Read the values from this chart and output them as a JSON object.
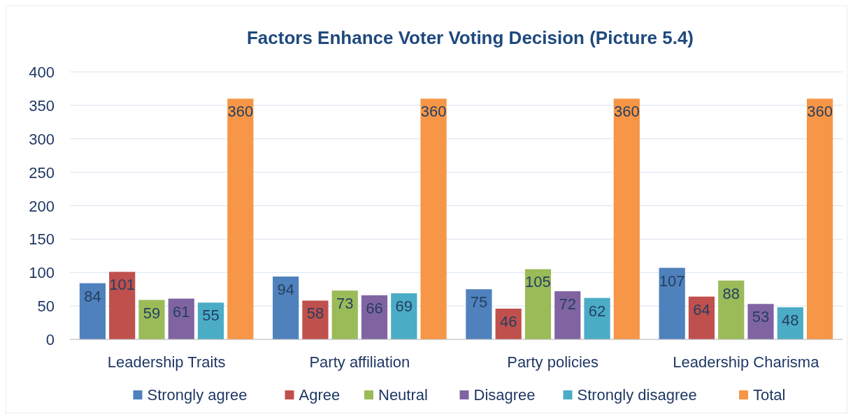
{
  "chart_data": {
    "type": "bar",
    "title": "Factors Enhance Voter Voting Decision (Picture 5.4)",
    "categories": [
      "Leadership Traits",
      "Party affiliation",
      "Party policies",
      "Leadership Charisma"
    ],
    "series": [
      {
        "name": "Strongly agree",
        "color": "#4f81bd",
        "values": [
          84,
          94,
          75,
          107
        ]
      },
      {
        "name": "Agree",
        "color": "#c0504d",
        "values": [
          101,
          58,
          46,
          64
        ]
      },
      {
        "name": "Neutral",
        "color": "#9bbb59",
        "values": [
          59,
          73,
          105,
          88
        ]
      },
      {
        "name": "Disagree",
        "color": "#8064a2",
        "values": [
          61,
          66,
          72,
          53
        ]
      },
      {
        "name": "Strongly disagree",
        "color": "#4bacc6",
        "values": [
          55,
          69,
          62,
          48
        ]
      },
      {
        "name": "Total",
        "color": "#f79646",
        "values": [
          360,
          360,
          360,
          360
        ]
      }
    ],
    "ylim": [
      0,
      400
    ],
    "yticks": [
      0,
      50,
      100,
      150,
      200,
      250,
      300,
      350,
      400
    ],
    "grid": "y",
    "legend": "bottom",
    "data_labels": true
  }
}
